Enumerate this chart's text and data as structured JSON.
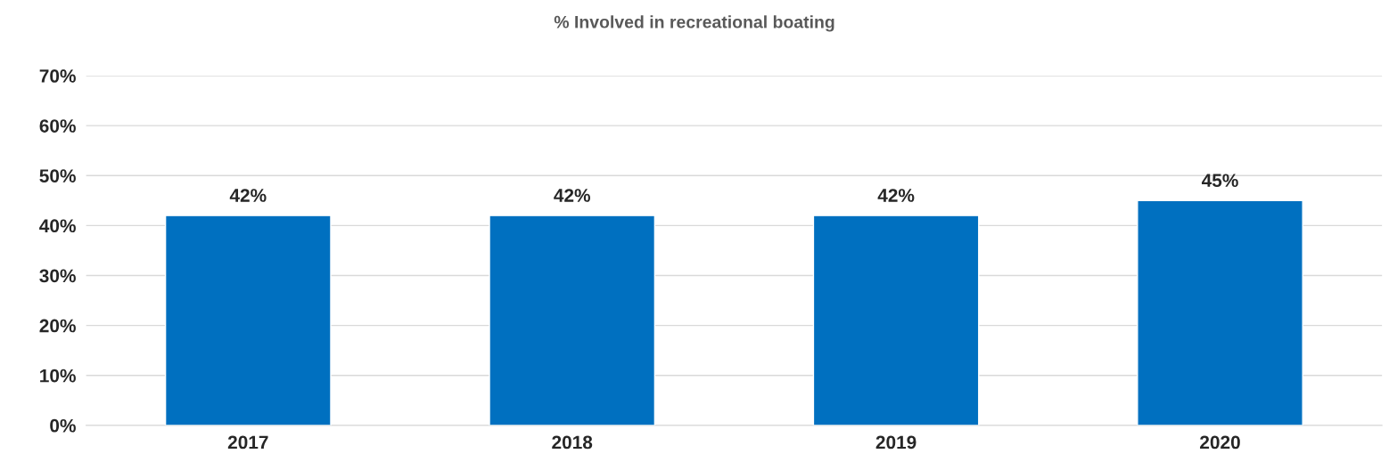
{
  "chart_data": {
    "type": "bar",
    "title": "% Involved in recreational boating",
    "categories": [
      "2017",
      "2018",
      "2019",
      "2020"
    ],
    "values": [
      42,
      42,
      42,
      45
    ],
    "value_labels": [
      "42%",
      "42%",
      "42%",
      "45%"
    ],
    "color": "#0070c0",
    "ylim": [
      0,
      70
    ],
    "yticks": [
      {
        "value": 0,
        "label": "0%"
      },
      {
        "value": 10,
        "label": "10%"
      },
      {
        "value": 20,
        "label": "20%"
      },
      {
        "value": 30,
        "label": "30%"
      },
      {
        "value": 40,
        "label": "40%"
      },
      {
        "value": 50,
        "label": "50%"
      },
      {
        "value": 60,
        "label": "60%"
      },
      {
        "value": 70,
        "label": "70%"
      }
    ],
    "grid": "y"
  }
}
